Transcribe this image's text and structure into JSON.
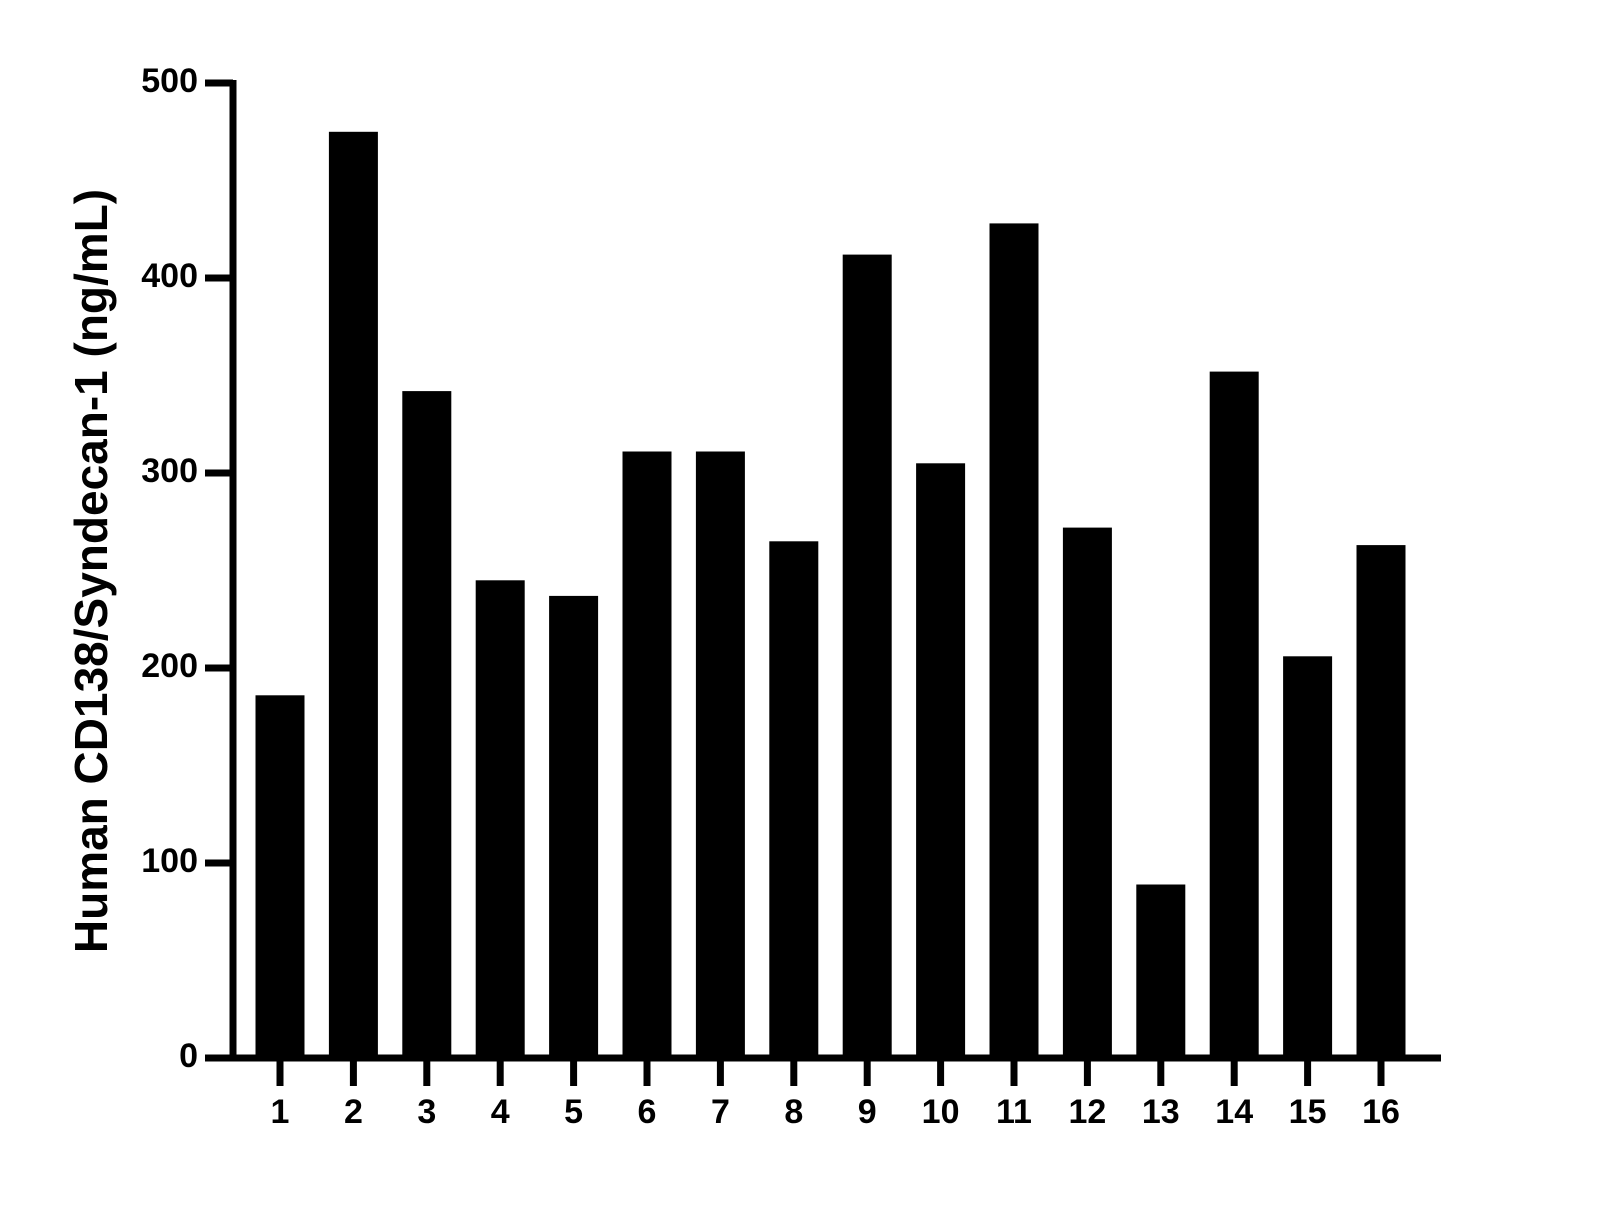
{
  "chart_data": {
    "type": "bar",
    "title": "",
    "xlabel": "",
    "ylabel": "Human CD138/Syndecan-1 (ng/mL)",
    "categories": [
      "1",
      "2",
      "3",
      "4",
      "5",
      "6",
      "7",
      "8",
      "9",
      "10",
      "11",
      "12",
      "13",
      "14",
      "15",
      "16"
    ],
    "values": [
      186,
      475,
      342,
      245,
      237,
      311,
      311,
      265,
      412,
      305,
      428,
      272,
      89,
      352,
      206,
      263
    ],
    "ylim": [
      0,
      500
    ],
    "yticks": [
      0,
      100,
      200,
      300,
      400,
      500
    ],
    "grid": false,
    "legend": "none",
    "bar_color": "#000000",
    "axis_color": "#000000"
  }
}
